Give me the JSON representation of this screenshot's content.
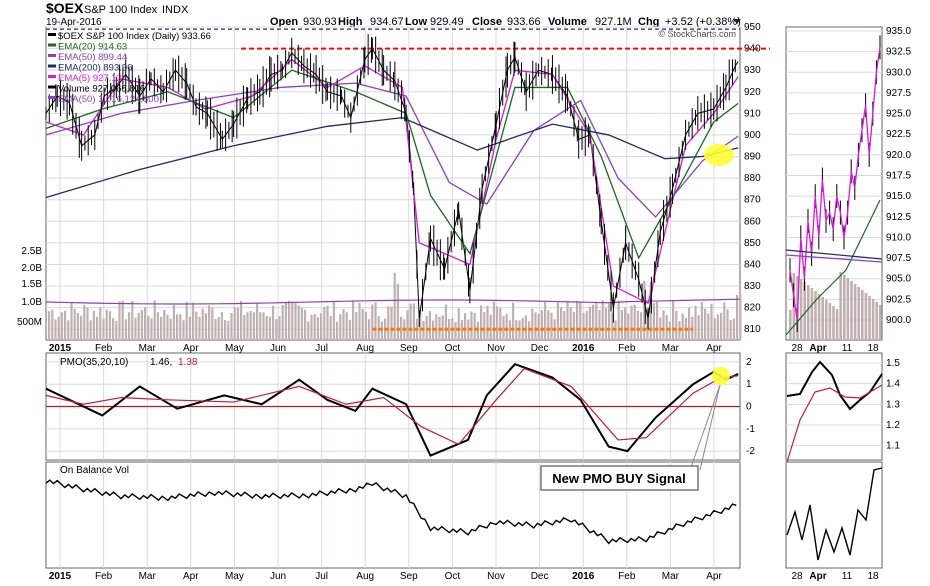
{
  "header": {
    "symbol": "$OEX",
    "name": "S&P 100 Index",
    "exchange": "INDX",
    "date": "19-Apr-2016",
    "open_label": "Open",
    "open": "930.93",
    "high_label": "High",
    "high": "934.67",
    "low_label": "Low",
    "low": "929.49",
    "close_label": "Close",
    "close": "933.66",
    "volume_label": "Volume",
    "volume": "927.1M",
    "chg_label": "Chg",
    "chg": "+3.52 (+0.38%)",
    "watermark": "© StockCharts.com"
  },
  "legend": [
    {
      "text": "$OEX S&P 100 Index (Daily) 933.66",
      "color": "#000000"
    },
    {
      "text": "EMA(20) 914.63",
      "color": "#1a6a1a"
    },
    {
      "text": "EMA(50) 899.44",
      "color": "#8e3fbf"
    },
    {
      "text": "EMA(200) 893.96",
      "color": "#1c2a66"
    },
    {
      "text": "EMA(5) 927.12",
      "color": "#d81ad8"
    },
    {
      "text": "Volume 927,066,816",
      "color": "#000000"
    },
    {
      "text": "EMA(50) 1,016,124,800",
      "color": "#8e3fbf"
    }
  ],
  "pmo_legend": {
    "label": "PMO(35,20,10)",
    "value1": "1.46,",
    "value2": "1.38"
  },
  "obv_legend": {
    "label": "On Balance Vol"
  },
  "annotation": "New PMO BUY Signal",
  "colors": {
    "price": "#000000",
    "ema20": "#1a6a1a",
    "ema50": "#8e3fbf",
    "ema200": "#1c2a66",
    "ema5": "#d81ad8",
    "volume": "#c0b0b0",
    "resistance": "#e01010",
    "support": "#ff7700",
    "highlight": "#ffff33",
    "grid": "#d8d8e4",
    "pmo_signal": "#c41a3c"
  },
  "chart_data": [
    {
      "type": "line",
      "panel": "price",
      "title": "$OEX S&P 100 Index (Daily)",
      "x_ticks": [
        "2015",
        "Feb",
        "Mar",
        "Apr",
        "May",
        "Jun",
        "Jul",
        "Aug",
        "Sep",
        "Oct",
        "Nov",
        "Dec",
        "2016",
        "Feb",
        "Mar",
        "Apr"
      ],
      "y_ticks": [
        810,
        820,
        830,
        840,
        850,
        860,
        870,
        880,
        890,
        900,
        910,
        920,
        930,
        940,
        950
      ],
      "ylim": [
        805,
        950
      ],
      "volume_ticks": [
        "500M",
        "1.0B",
        "1.5B",
        "2.0B",
        "2.5B"
      ],
      "resistance_level": 940,
      "support_level": 810,
      "series": [
        {
          "name": "Close",
          "color": "#000000",
          "points": [
            [
              0,
              910
            ],
            [
              12,
              918
            ],
            [
              25,
              915
            ],
            [
              38,
              895
            ],
            [
              52,
              900
            ],
            [
              62,
              918
            ],
            [
              75,
              922
            ],
            [
              85,
              928
            ],
            [
              100,
              918
            ],
            [
              112,
              926
            ],
            [
              125,
              920
            ],
            [
              138,
              930
            ],
            [
              150,
              924
            ],
            [
              160,
              913
            ],
            [
              172,
              910
            ],
            [
              188,
              898
            ],
            [
              200,
              905
            ],
            [
              215,
              917
            ],
            [
              228,
              920
            ],
            [
              240,
              928
            ],
            [
              252,
              930
            ],
            [
              262,
              938
            ],
            [
              275,
              932
            ],
            [
              288,
              928
            ],
            [
              300,
              920
            ],
            [
              315,
              918
            ],
            [
              325,
              908
            ],
            [
              340,
              935
            ],
            [
              348,
              940
            ],
            [
              360,
              930
            ],
            [
              372,
              925
            ],
            [
              384,
              910
            ],
            [
              392,
              875
            ],
            [
              398,
              815
            ],
            [
              410,
              852
            ],
            [
              425,
              838
            ],
            [
              440,
              865
            ],
            [
              452,
              828
            ],
            [
              465,
              875
            ],
            [
              480,
              905
            ],
            [
              492,
              930
            ],
            [
              500,
              936
            ],
            [
              512,
              920
            ],
            [
              525,
              930
            ],
            [
              540,
              928
            ],
            [
              556,
              918
            ],
            [
              568,
              898
            ],
            [
              580,
              900
            ],
            [
              592,
              860
            ],
            [
              605,
              820
            ],
            [
              618,
              850
            ],
            [
              632,
              833
            ],
            [
              642,
              815
            ],
            [
              655,
              855
            ],
            [
              668,
              875
            ],
            [
              682,
              900
            ],
            [
              695,
              910
            ],
            [
              712,
              912
            ],
            [
              725,
              922
            ],
            [
              735,
              932
            ],
            [
              738,
              934
            ]
          ]
        },
        {
          "name": "EMA(5)",
          "color": "#d81ad8",
          "points": [
            [
              0,
              906
            ],
            [
              40,
              900
            ],
            [
              80,
              926
            ],
            [
              130,
              922
            ],
            [
              170,
              912
            ],
            [
              220,
              918
            ],
            [
              262,
              935
            ],
            [
              300,
              922
            ],
            [
              340,
              932
            ],
            [
              380,
              922
            ],
            [
              398,
              850
            ],
            [
              420,
              846
            ],
            [
              452,
              840
            ],
            [
              480,
              898
            ],
            [
              500,
              930
            ],
            [
              540,
              928
            ],
            [
              580,
              900
            ],
            [
              605,
              830
            ],
            [
              642,
              822
            ],
            [
              682,
              895
            ],
            [
              712,
              910
            ],
            [
              738,
              927
            ]
          ]
        },
        {
          "name": "EMA(20)",
          "color": "#1a6a1a",
          "points": [
            [
              0,
              903
            ],
            [
              60,
              912
            ],
            [
              130,
              920
            ],
            [
              200,
              908
            ],
            [
              262,
              930
            ],
            [
              330,
              920
            ],
            [
              384,
              910
            ],
            [
              410,
              872
            ],
            [
              452,
              845
            ],
            [
              500,
              922
            ],
            [
              556,
              922
            ],
            [
              592,
              890
            ],
            [
              632,
              843
            ],
            [
              680,
              880
            ],
            [
              712,
              906
            ],
            [
              738,
              914.6
            ]
          ]
        },
        {
          "name": "EMA(50)",
          "color": "#8e3fbf",
          "points": [
            [
              0,
              900
            ],
            [
              80,
              910
            ],
            [
              160,
              916
            ],
            [
              250,
              922
            ],
            [
              330,
              924
            ],
            [
              384,
              918
            ],
            [
              430,
              878
            ],
            [
              470,
              868
            ],
            [
              520,
              902
            ],
            [
              570,
              916
            ],
            [
              610,
              880
            ],
            [
              650,
              862
            ],
            [
              700,
              888
            ],
            [
              738,
              899.4
            ]
          ]
        },
        {
          "name": "EMA(200)",
          "color": "#1c2a66",
          "points": [
            [
              0,
              871
            ],
            [
              100,
              884
            ],
            [
              200,
              895
            ],
            [
              300,
              904
            ],
            [
              380,
              908
            ],
            [
              460,
              893
            ],
            [
              540,
              905
            ],
            [
              600,
              900
            ],
            [
              660,
              889
            ],
            [
              700,
              890
            ],
            [
              738,
              894
            ]
          ]
        }
      ]
    },
    {
      "type": "line",
      "panel": "pmo",
      "title": "PMO(35,20,10)",
      "y_ticks": [
        -2,
        -1,
        0,
        1,
        2
      ],
      "ylim": [
        -2.4,
        2.4
      ],
      "zero_line": 0,
      "series": [
        {
          "name": "PMO",
          "color": "#000000",
          "points": [
            [
              0,
              0.8
            ],
            [
              30,
              0.2
            ],
            [
              60,
              -0.4
            ],
            [
              100,
              0.9
            ],
            [
              140,
              -0.1
            ],
            [
              190,
              0.5
            ],
            [
              230,
              0.1
            ],
            [
              270,
              1.2
            ],
            [
              300,
              0.3
            ],
            [
              330,
              -0.2
            ],
            [
              348,
              0.8
            ],
            [
              384,
              0.1
            ],
            [
              410,
              -2.2
            ],
            [
              450,
              -1.5
            ],
            [
              470,
              0.5
            ],
            [
              500,
              1.9
            ],
            [
              540,
              1.3
            ],
            [
              570,
              0.3
            ],
            [
              600,
              -1.8
            ],
            [
              620,
              -2.0
            ],
            [
              650,
              -0.5
            ],
            [
              690,
              1.0
            ],
            [
              712,
              1.55
            ],
            [
              725,
              1.2
            ],
            [
              738,
              1.46
            ]
          ]
        },
        {
          "name": "Signal",
          "color": "#c41a3c",
          "points": [
            [
              0,
              0.5
            ],
            [
              40,
              0.1
            ],
            [
              80,
              0.4
            ],
            [
              130,
              0.3
            ],
            [
              200,
              0.2
            ],
            [
              270,
              0.9
            ],
            [
              320,
              0.1
            ],
            [
              360,
              0.4
            ],
            [
              400,
              -0.9
            ],
            [
              440,
              -1.7
            ],
            [
              480,
              0.3
            ],
            [
              510,
              1.7
            ],
            [
              560,
              0.9
            ],
            [
              610,
              -1.5
            ],
            [
              640,
              -1.4
            ],
            [
              690,
              0.6
            ],
            [
              720,
              1.3
            ],
            [
              738,
              1.38
            ]
          ]
        }
      ]
    },
    {
      "type": "line",
      "panel": "obv",
      "title": "On Balance Vol",
      "series": [
        {
          "name": "On Balance Vol",
          "color": "#000000",
          "points": [
            [
              0,
              0.9
            ],
            [
              40,
              0.8
            ],
            [
              80,
              0.72
            ],
            [
              130,
              0.7
            ],
            [
              180,
              0.76
            ],
            [
              230,
              0.72
            ],
            [
              280,
              0.73
            ],
            [
              330,
              0.8
            ],
            [
              348,
              0.86
            ],
            [
              384,
              0.72
            ],
            [
              410,
              0.35
            ],
            [
              450,
              0.3
            ],
            [
              480,
              0.42
            ],
            [
              520,
              0.38
            ],
            [
              560,
              0.45
            ],
            [
              600,
              0.2
            ],
            [
              640,
              0.22
            ],
            [
              680,
              0.4
            ],
            [
              720,
              0.55
            ],
            [
              738,
              0.62
            ]
          ]
        }
      ]
    },
    {
      "type": "line",
      "panel": "price-detail",
      "x_ticks": [
        "28",
        "Apr",
        "11",
        "18"
      ],
      "y_ticks": [
        900.0,
        902.5,
        905.0,
        907.5,
        910.0,
        912.5,
        915.0,
        917.5,
        920.0,
        922.5,
        925.0,
        927.5,
        930.0,
        932.5,
        935.0
      ]
    },
    {
      "type": "line",
      "panel": "pmo-detail",
      "y_ticks": [
        1.1,
        1.2,
        1.3,
        1.4,
        1.5
      ]
    }
  ]
}
